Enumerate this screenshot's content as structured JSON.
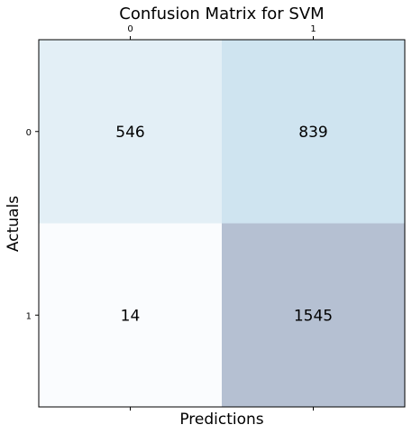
{
  "chart_data": {
    "type": "heatmap",
    "title": "Confusion Matrix for SVM",
    "xlabel": "Predictions",
    "ylabel": "Actuals",
    "x_categories": [
      "0",
      "1"
    ],
    "y_categories": [
      "0",
      "1"
    ],
    "values": [
      [
        546,
        839
      ],
      [
        14,
        1545
      ]
    ],
    "colormap": "Blues",
    "cell_colors": [
      [
        "#e3eff6",
        "#cfe4f0"
      ],
      [
        "#fafcfe",
        "#b5c0d2"
      ]
    ],
    "x_ticks_position": "top",
    "grid": false,
    "legend": "none"
  }
}
